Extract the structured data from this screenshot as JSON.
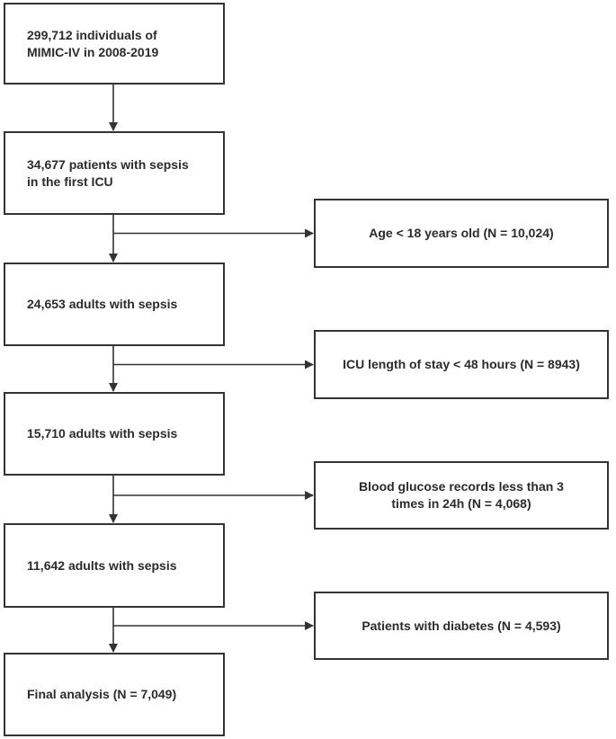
{
  "flowchart": {
    "main_steps": [
      {
        "lines": [
          "299,712 individuals of",
          "MIMIC-IV in 2008-2019"
        ]
      },
      {
        "lines": [
          "34,677 patients with sepsis",
          "in the first ICU"
        ]
      },
      {
        "lines": [
          "24,653 adults with sepsis"
        ]
      },
      {
        "lines": [
          "15,710 adults with sepsis"
        ]
      },
      {
        "lines": [
          "11,642 adults with sepsis"
        ]
      },
      {
        "lines": [
          "Final analysis (N = 7,049)"
        ]
      }
    ],
    "exclusions": [
      {
        "lines": [
          "Age < 18 years old (N = 10,024)"
        ]
      },
      {
        "lines": [
          "ICU length of stay < 48 hours (N = 8943)"
        ]
      },
      {
        "lines": [
          "Blood glucose records less than 3",
          "times in 24h (N = 4,068)"
        ]
      },
      {
        "lines": [
          "Patients with diabetes (N = 4,593)"
        ]
      }
    ]
  },
  "colors": {
    "border": "#333333",
    "text": "#2b2b2b",
    "arrow": "#333333",
    "background": "#ffffff"
  }
}
